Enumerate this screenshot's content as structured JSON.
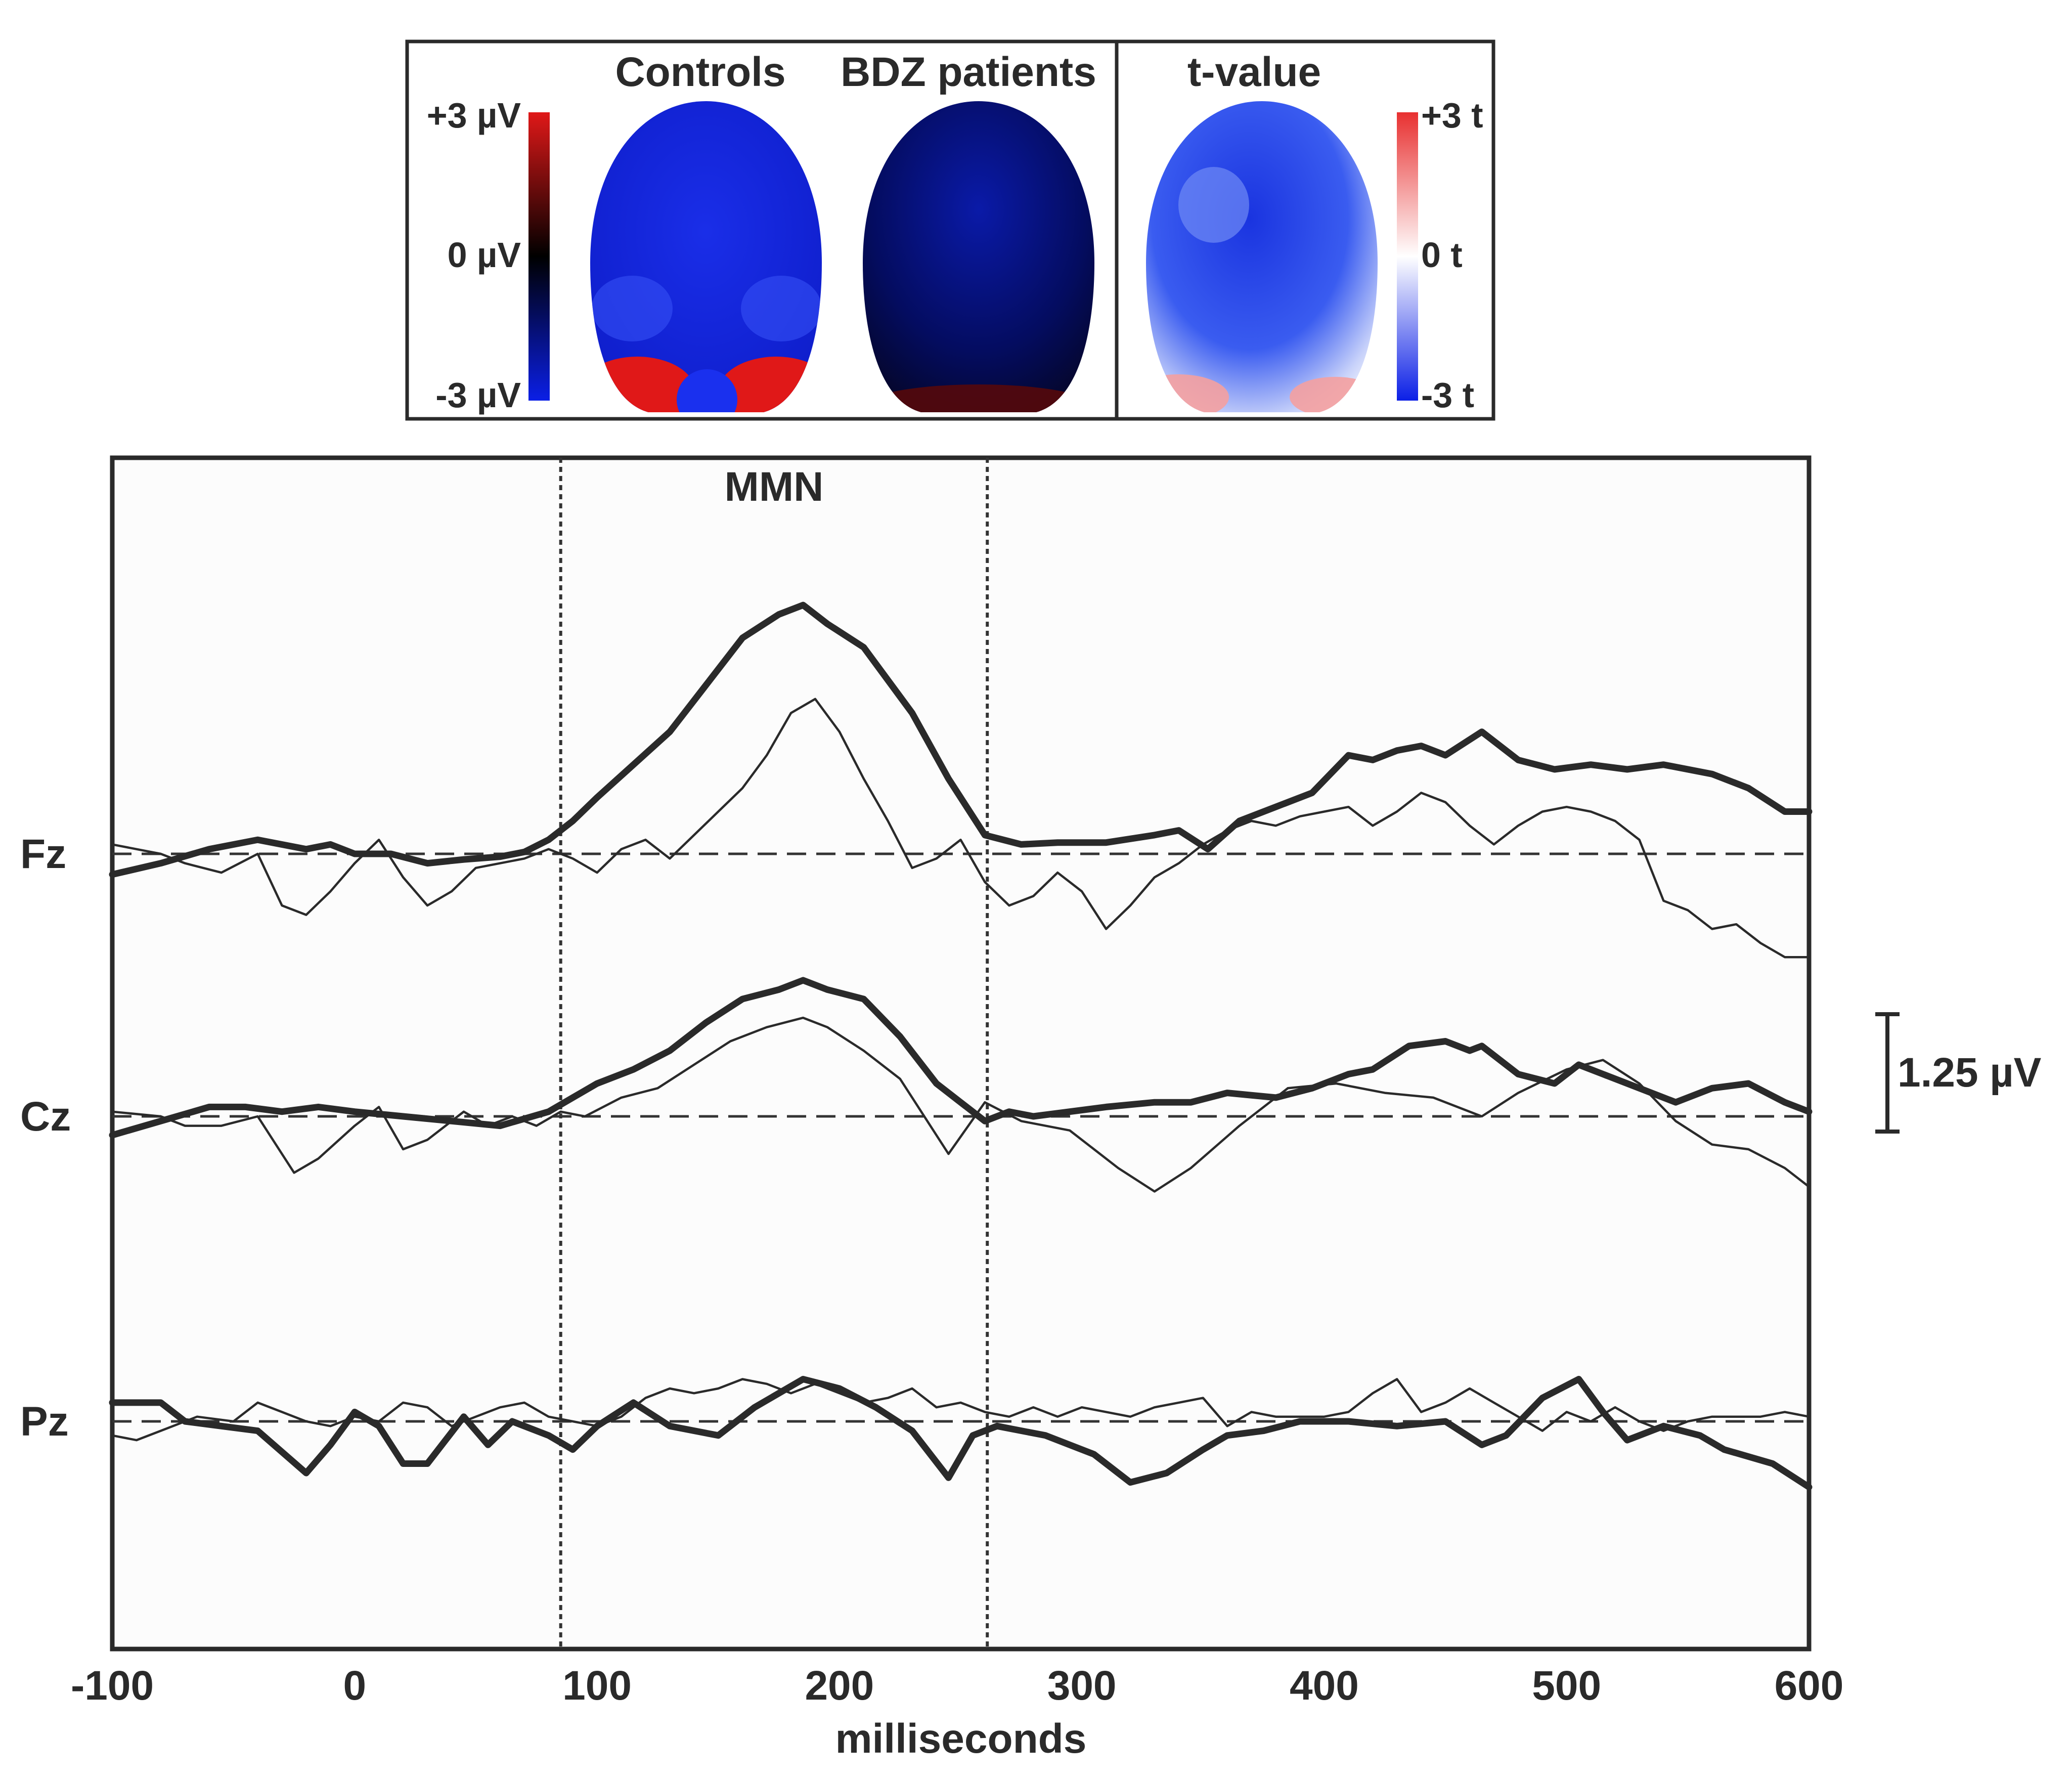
{
  "topomaps": {
    "panel_titles": [
      "Controls",
      "BDZ patients",
      "t-value"
    ],
    "amplitude_scale": {
      "max_label": "+3 µV",
      "mid_label": "0 µV",
      "min_label": "-3 µV"
    },
    "t_scale": {
      "max_label": "+3 t",
      "mid_label": "0 t",
      "min_label": "-3 t"
    },
    "colors": {
      "negative": "#0b1fe6",
      "positive": "#e01818",
      "zero_amplitude": "#000000",
      "zero_t": "#ffffff"
    }
  },
  "chart_data": {
    "type": "line",
    "title": "",
    "xlabel": "milliseconds",
    "xlim": [
      -100,
      600
    ],
    "xticks": [
      -100,
      0,
      100,
      200,
      300,
      400,
      500,
      600
    ],
    "window": {
      "label": "MMN",
      "start": 85,
      "end": 261
    },
    "scale_bar": {
      "label": "1.25 µV",
      "value": 1.25
    },
    "channels": [
      "Fz",
      "Cz",
      "Pz"
    ],
    "series": [
      {
        "channel": "Fz",
        "style": "thick",
        "x": [
          -100,
          -80,
          -60,
          -40,
          -20,
          -10,
          0,
          15,
          30,
          45,
          60,
          70,
          80,
          90,
          100,
          115,
          130,
          145,
          160,
          175,
          185,
          195,
          210,
          230,
          245,
          260,
          275,
          290,
          310,
          330,
          340,
          352,
          365,
          380,
          395,
          410,
          420,
          430,
          440,
          450,
          465,
          480,
          495,
          510,
          525,
          540,
          560,
          575,
          590,
          600
        ],
        "y": [
          -0.22,
          -0.1,
          0.05,
          0.15,
          0.05,
          0.1,
          0.0,
          0.0,
          -0.1,
          -0.06,
          -0.03,
          0.02,
          0.15,
          0.35,
          0.6,
          0.95,
          1.3,
          1.8,
          2.3,
          2.55,
          2.65,
          2.45,
          2.2,
          1.5,
          0.8,
          0.2,
          0.1,
          0.12,
          0.12,
          0.2,
          0.25,
          0.05,
          0.35,
          0.5,
          0.65,
          1.05,
          1.0,
          1.1,
          1.15,
          1.05,
          1.3,
          1.0,
          0.9,
          0.95,
          0.9,
          0.95,
          0.85,
          0.7,
          0.45,
          0.45
        ]
      },
      {
        "channel": "Fz",
        "style": "thin",
        "x": [
          -100,
          -80,
          -70,
          -55,
          -40,
          -30,
          -20,
          -10,
          0,
          10,
          20,
          30,
          40,
          50,
          60,
          70,
          80,
          90,
          100,
          110,
          120,
          130,
          140,
          150,
          160,
          170,
          180,
          190,
          200,
          210,
          220,
          230,
          240,
          250,
          260,
          270,
          280,
          290,
          300,
          310,
          320,
          330,
          340,
          350,
          360,
          370,
          380,
          390,
          400,
          410,
          420,
          430,
          440,
          450,
          460,
          470,
          480,
          490,
          500,
          510,
          520,
          530,
          540,
          550,
          560,
          570,
          580,
          590,
          600
        ],
        "y": [
          0.1,
          0.0,
          -0.1,
          -0.2,
          0.0,
          -0.55,
          -0.65,
          -0.4,
          -0.1,
          0.15,
          -0.25,
          -0.55,
          -0.4,
          -0.15,
          -0.1,
          -0.05,
          0.05,
          -0.05,
          -0.2,
          0.05,
          0.15,
          -0.05,
          0.2,
          0.45,
          0.7,
          1.05,
          1.5,
          1.65,
          1.3,
          0.8,
          0.35,
          -0.15,
          -0.05,
          0.15,
          -0.3,
          -0.55,
          -0.45,
          -0.2,
          -0.4,
          -0.8,
          -0.55,
          -0.25,
          -0.1,
          0.1,
          0.25,
          0.35,
          0.3,
          0.4,
          0.45,
          0.5,
          0.3,
          0.45,
          0.65,
          0.55,
          0.3,
          0.1,
          0.3,
          0.45,
          0.5,
          0.45,
          0.35,
          0.15,
          -0.5,
          -0.6,
          -0.8,
          -0.75,
          -0.95,
          -1.1,
          -1.1
        ]
      },
      {
        "channel": "Cz",
        "style": "thick",
        "x": [
          -100,
          -80,
          -60,
          -45,
          -30,
          -15,
          0,
          20,
          40,
          60,
          80,
          90,
          100,
          115,
          130,
          145,
          160,
          175,
          185,
          195,
          210,
          225,
          240,
          250,
          260,
          270,
          280,
          295,
          310,
          330,
          345,
          360,
          380,
          395,
          410,
          420,
          435,
          450,
          460,
          465,
          480,
          495,
          505,
          515,
          530,
          545,
          560,
          575,
          590,
          600
        ],
        "y": [
          -0.2,
          -0.05,
          0.1,
          0.1,
          0.05,
          0.1,
          0.05,
          0.0,
          -0.05,
          -0.1,
          0.05,
          0.2,
          0.35,
          0.5,
          0.7,
          1.0,
          1.25,
          1.35,
          1.45,
          1.35,
          1.25,
          0.85,
          0.35,
          0.15,
          -0.05,
          0.05,
          0.0,
          0.05,
          0.1,
          0.15,
          0.15,
          0.25,
          0.2,
          0.3,
          0.45,
          0.5,
          0.75,
          0.8,
          0.7,
          0.75,
          0.45,
          0.35,
          0.55,
          0.45,
          0.3,
          0.15,
          0.3,
          0.35,
          0.15,
          0.05
        ]
      },
      {
        "channel": "Cz",
        "style": "thin",
        "x": [
          -100,
          -80,
          -70,
          -55,
          -40,
          -25,
          -15,
          0,
          10,
          20,
          30,
          45,
          55,
          65,
          75,
          85,
          95,
          110,
          125,
          140,
          155,
          170,
          185,
          195,
          210,
          225,
          245,
          260,
          275,
          295,
          315,
          330,
          345,
          365,
          385,
          405,
          425,
          445,
          465,
          480,
          500,
          515,
          530,
          545,
          560,
          575,
          590,
          600
        ],
        "y": [
          0.05,
          0.0,
          -0.1,
          -0.1,
          0.0,
          -0.6,
          -0.45,
          -0.1,
          0.1,
          -0.35,
          -0.25,
          0.05,
          -0.1,
          0.0,
          -0.1,
          0.05,
          0.0,
          0.2,
          0.3,
          0.55,
          0.8,
          0.95,
          1.05,
          0.95,
          0.7,
          0.4,
          -0.4,
          0.15,
          -0.05,
          -0.15,
          -0.55,
          -0.8,
          -0.55,
          -0.1,
          0.3,
          0.35,
          0.25,
          0.2,
          0.0,
          0.25,
          0.5,
          0.6,
          0.35,
          -0.05,
          -0.3,
          -0.35,
          -0.55,
          -0.75
        ]
      },
      {
        "channel": "Pz",
        "style": "thick",
        "x": [
          -100,
          -80,
          -70,
          -55,
          -40,
          -20,
          -10,
          0,
          10,
          20,
          30,
          45,
          55,
          65,
          80,
          90,
          100,
          115,
          130,
          150,
          165,
          185,
          200,
          215,
          230,
          245,
          255,
          265,
          285,
          305,
          320,
          335,
          350,
          360,
          375,
          390,
          410,
          430,
          450,
          465,
          475,
          490,
          505,
          515,
          525,
          540,
          555,
          565,
          585,
          600
        ],
        "y": [
          0.2,
          0.2,
          0.0,
          -0.05,
          -0.1,
          -0.55,
          -0.25,
          0.1,
          -0.05,
          -0.45,
          -0.45,
          0.05,
          -0.25,
          0.0,
          -0.15,
          -0.3,
          -0.05,
          0.2,
          -0.05,
          -0.15,
          0.15,
          0.45,
          0.35,
          0.15,
          -0.1,
          -0.6,
          -0.15,
          -0.05,
          -0.15,
          -0.35,
          -0.65,
          -0.55,
          -0.3,
          -0.15,
          -0.1,
          0.0,
          0.0,
          -0.05,
          0.0,
          -0.25,
          -0.15,
          0.25,
          0.45,
          0.1,
          -0.2,
          -0.05,
          -0.15,
          -0.3,
          -0.45,
          -0.7
        ]
      },
      {
        "channel": "Pz",
        "style": "thin",
        "x": [
          -100,
          -90,
          -80,
          -65,
          -50,
          -40,
          -30,
          -20,
          -10,
          0,
          10,
          20,
          30,
          40,
          50,
          60,
          70,
          80,
          90,
          100,
          110,
          120,
          130,
          140,
          150,
          160,
          170,
          180,
          190,
          200,
          210,
          220,
          230,
          240,
          250,
          260,
          270,
          280,
          290,
          300,
          310,
          320,
          330,
          340,
          350,
          360,
          370,
          380,
          390,
          400,
          410,
          420,
          430,
          440,
          450,
          460,
          470,
          480,
          490,
          500,
          510,
          520,
          530,
          540,
          550,
          560,
          570,
          580,
          590,
          600
        ],
        "y": [
          -0.15,
          -0.2,
          -0.1,
          0.05,
          0.0,
          0.2,
          0.1,
          0.0,
          -0.05,
          0.05,
          0.0,
          0.2,
          0.15,
          -0.05,
          0.05,
          0.15,
          0.2,
          0.05,
          0.0,
          -0.05,
          0.05,
          0.25,
          0.35,
          0.3,
          0.35,
          0.45,
          0.4,
          0.3,
          0.4,
          0.3,
          0.2,
          0.25,
          0.35,
          0.15,
          0.2,
          0.1,
          0.05,
          0.15,
          0.05,
          0.15,
          0.1,
          0.05,
          0.15,
          0.2,
          0.25,
          -0.05,
          0.1,
          0.05,
          0.05,
          0.05,
          0.1,
          0.3,
          0.45,
          0.1,
          0.2,
          0.35,
          0.2,
          0.05,
          -0.1,
          0.1,
          0.0,
          0.15,
          0.0,
          -0.1,
          0.0,
          0.05,
          0.05,
          0.05,
          0.1,
          0.05
        ]
      }
    ]
  }
}
